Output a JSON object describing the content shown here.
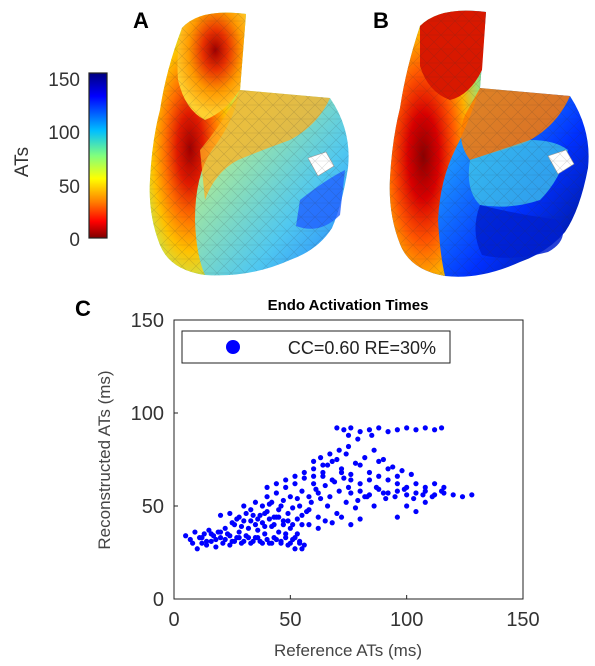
{
  "panels": {
    "a_label": "A",
    "b_label": "B",
    "c_label": "C"
  },
  "colorbar": {
    "label": "ATs",
    "ticks": [
      "150",
      "100",
      "50",
      "0"
    ],
    "tick_values": [
      150,
      100,
      50,
      0
    ],
    "range": [
      0,
      150
    ],
    "colormap": "jet-reversed (red = early, dark blue = late)",
    "colors": [
      "#00007f",
      "#0000ff",
      "#00bfff",
      "#7fff7f",
      "#ffff00",
      "#ff8000",
      "#ff0000",
      "#7f0000"
    ]
  },
  "chart_data": {
    "type": "scatter",
    "title": "Endo Activation Times",
    "xlabel": "Reference ATs (ms)",
    "ylabel": "Reconstructed ATs (ms)",
    "xlim": [
      0,
      150
    ],
    "ylim": [
      0,
      150
    ],
    "xticks": [
      0,
      50,
      100,
      150
    ],
    "yticks": [
      0,
      50,
      100,
      150
    ],
    "xtick_labels": [
      "0",
      "50",
      "100",
      "150"
    ],
    "ytick_labels": [
      "0",
      "50",
      "100",
      "150"
    ],
    "grid": false,
    "legend": {
      "entry": "CC=0.60 RE=30%",
      "placement": "top-left"
    },
    "marker_color": "#0000ff",
    "series": [
      {
        "name": "CC=0.60 RE=30%",
        "points": [
          [
            5,
            34
          ],
          [
            7,
            32
          ],
          [
            8,
            30
          ],
          [
            9,
            36
          ],
          [
            10,
            27
          ],
          [
            11,
            33
          ],
          [
            12,
            30
          ],
          [
            13,
            35
          ],
          [
            14,
            29
          ],
          [
            15,
            37
          ],
          [
            16,
            31
          ],
          [
            17,
            34
          ],
          [
            18,
            28
          ],
          [
            19,
            36
          ],
          [
            20,
            33
          ],
          [
            21,
            30
          ],
          [
            22,
            38
          ],
          [
            23,
            35
          ],
          [
            24,
            29
          ],
          [
            25,
            31
          ],
          [
            26,
            40
          ],
          [
            27,
            33
          ],
          [
            28,
            36
          ],
          [
            29,
            30
          ],
          [
            30,
            42
          ],
          [
            31,
            34
          ],
          [
            32,
            38
          ],
          [
            33,
            30
          ],
          [
            34,
            45
          ],
          [
            35,
            33
          ],
          [
            36,
            37
          ],
          [
            37,
            31
          ],
          [
            38,
            41
          ],
          [
            39,
            35
          ],
          [
            40,
            47
          ],
          [
            41,
            30
          ],
          [
            42,
            39
          ],
          [
            43,
            33
          ],
          [
            44,
            44
          ],
          [
            45,
            36
          ],
          [
            46,
            31
          ],
          [
            47,
            42
          ],
          [
            48,
            35
          ],
          [
            49,
            29
          ],
          [
            50,
            38
          ],
          [
            51,
            32
          ],
          [
            52,
            27
          ],
          [
            53,
            35
          ],
          [
            54,
            30
          ],
          [
            55,
            27
          ],
          [
            20,
            45
          ],
          [
            24,
            46
          ],
          [
            28,
            44
          ],
          [
            30,
            50
          ],
          [
            33,
            48
          ],
          [
            35,
            52
          ],
          [
            38,
            50
          ],
          [
            40,
            55
          ],
          [
            42,
            52
          ],
          [
            44,
            57
          ],
          [
            46,
            50
          ],
          [
            48,
            60
          ],
          [
            50,
            55
          ],
          [
            52,
            62
          ],
          [
            54,
            50
          ],
          [
            56,
            65
          ],
          [
            58,
            55
          ],
          [
            60,
            62
          ],
          [
            62,
            57
          ],
          [
            64,
            66
          ],
          [
            36,
            43
          ],
          [
            39,
            46
          ],
          [
            41,
            51
          ],
          [
            43,
            44
          ],
          [
            45,
            48
          ],
          [
            47,
            53
          ],
          [
            49,
            46
          ],
          [
            51,
            49
          ],
          [
            53,
            54
          ],
          [
            55,
            58
          ],
          [
            57,
            47
          ],
          [
            59,
            52
          ],
          [
            61,
            59
          ],
          [
            63,
            54
          ],
          [
            65,
            61
          ],
          [
            67,
            55
          ],
          [
            69,
            63
          ],
          [
            71,
            58
          ],
          [
            73,
            65
          ],
          [
            75,
            60
          ],
          [
            55,
            45
          ],
          [
            58,
            48
          ],
          [
            62,
            44
          ],
          [
            66,
            50
          ],
          [
            70,
            46
          ],
          [
            74,
            52
          ],
          [
            78,
            49
          ],
          [
            82,
            55
          ],
          [
            86,
            50
          ],
          [
            90,
            57
          ],
          [
            60,
            66
          ],
          [
            64,
            68
          ],
          [
            68,
            64
          ],
          [
            72,
            70
          ],
          [
            76,
            67
          ],
          [
            80,
            72
          ],
          [
            84,
            68
          ],
          [
            88,
            74
          ],
          [
            92,
            70
          ],
          [
            96,
            66
          ],
          [
            66,
            72
          ],
          [
            70,
            75
          ],
          [
            74,
            78
          ],
          [
            78,
            73
          ],
          [
            82,
            76
          ],
          [
            86,
            80
          ],
          [
            90,
            75
          ],
          [
            94,
            71
          ],
          [
            98,
            69
          ],
          [
            102,
            67
          ],
          [
            76,
            57
          ],
          [
            80,
            58
          ],
          [
            84,
            56
          ],
          [
            88,
            59
          ],
          [
            92,
            57
          ],
          [
            96,
            58
          ],
          [
            100,
            56
          ],
          [
            104,
            57
          ],
          [
            108,
            58
          ],
          [
            112,
            56
          ],
          [
            116,
            57
          ],
          [
            120,
            56
          ],
          [
            124,
            55
          ],
          [
            128,
            56
          ],
          [
            79,
            53
          ],
          [
            83,
            55
          ],
          [
            87,
            60
          ],
          [
            91,
            54
          ],
          [
            95,
            55
          ],
          [
            99,
            59
          ],
          [
            103,
            54
          ],
          [
            107,
            56
          ],
          [
            111,
            55
          ],
          [
            115,
            58
          ],
          [
            70,
            92
          ],
          [
            73,
            91
          ],
          [
            76,
            92
          ],
          [
            80,
            90
          ],
          [
            84,
            91
          ],
          [
            88,
            92
          ],
          [
            92,
            90
          ],
          [
            96,
            91
          ],
          [
            100,
            92
          ],
          [
            104,
            91
          ],
          [
            108,
            92
          ],
          [
            112,
            91
          ],
          [
            115,
            92
          ],
          [
            75,
            88
          ],
          [
            79,
            86
          ],
          [
            85,
            88
          ],
          [
            65,
            42
          ],
          [
            68,
            41
          ],
          [
            72,
            44
          ],
          [
            76,
            40
          ],
          [
            80,
            43
          ],
          [
            62,
            38
          ],
          [
            58,
            40
          ],
          [
            96,
            44
          ],
          [
            100,
            50
          ],
          [
            104,
            47
          ],
          [
            108,
            52
          ],
          [
            60,
            70
          ],
          [
            64,
            72
          ],
          [
            68,
            74
          ],
          [
            72,
            68
          ],
          [
            76,
            64
          ],
          [
            80,
            62
          ],
          [
            84,
            64
          ],
          [
            88,
            66
          ],
          [
            92,
            64
          ],
          [
            96,
            62
          ],
          [
            100,
            60
          ],
          [
            104,
            62
          ],
          [
            108,
            60
          ],
          [
            112,
            62
          ],
          [
            116,
            60
          ],
          [
            40,
            60
          ],
          [
            44,
            62
          ],
          [
            48,
            64
          ],
          [
            52,
            66
          ],
          [
            56,
            68
          ],
          [
            60,
            74
          ],
          [
            63,
            76
          ],
          [
            67,
            78
          ],
          [
            71,
            80
          ],
          [
            75,
            82
          ],
          [
            25,
            41
          ],
          [
            27,
            43
          ],
          [
            29,
            39
          ],
          [
            31,
            46
          ],
          [
            33,
            42
          ],
          [
            35,
            40
          ],
          [
            37,
            45
          ],
          [
            39,
            39
          ],
          [
            41,
            43
          ],
          [
            43,
            40
          ],
          [
            45,
            44
          ],
          [
            47,
            40
          ],
          [
            49,
            42
          ],
          [
            51,
            40
          ],
          [
            53,
            43
          ],
          [
            55,
            40
          ],
          [
            12,
            33
          ],
          [
            14,
            31
          ],
          [
            16,
            35
          ],
          [
            18,
            32
          ],
          [
            20,
            36
          ],
          [
            22,
            32
          ],
          [
            24,
            34
          ],
          [
            26,
            31
          ],
          [
            28,
            33
          ],
          [
            30,
            31
          ],
          [
            32,
            33
          ],
          [
            34,
            31
          ],
          [
            36,
            33
          ],
          [
            38,
            30
          ],
          [
            40,
            32
          ],
          [
            42,
            30
          ],
          [
            44,
            32
          ],
          [
            46,
            30
          ],
          [
            48,
            33
          ],
          [
            50,
            30
          ],
          [
            52,
            33
          ],
          [
            54,
            31
          ],
          [
            56,
            29
          ]
        ]
      }
    ]
  }
}
